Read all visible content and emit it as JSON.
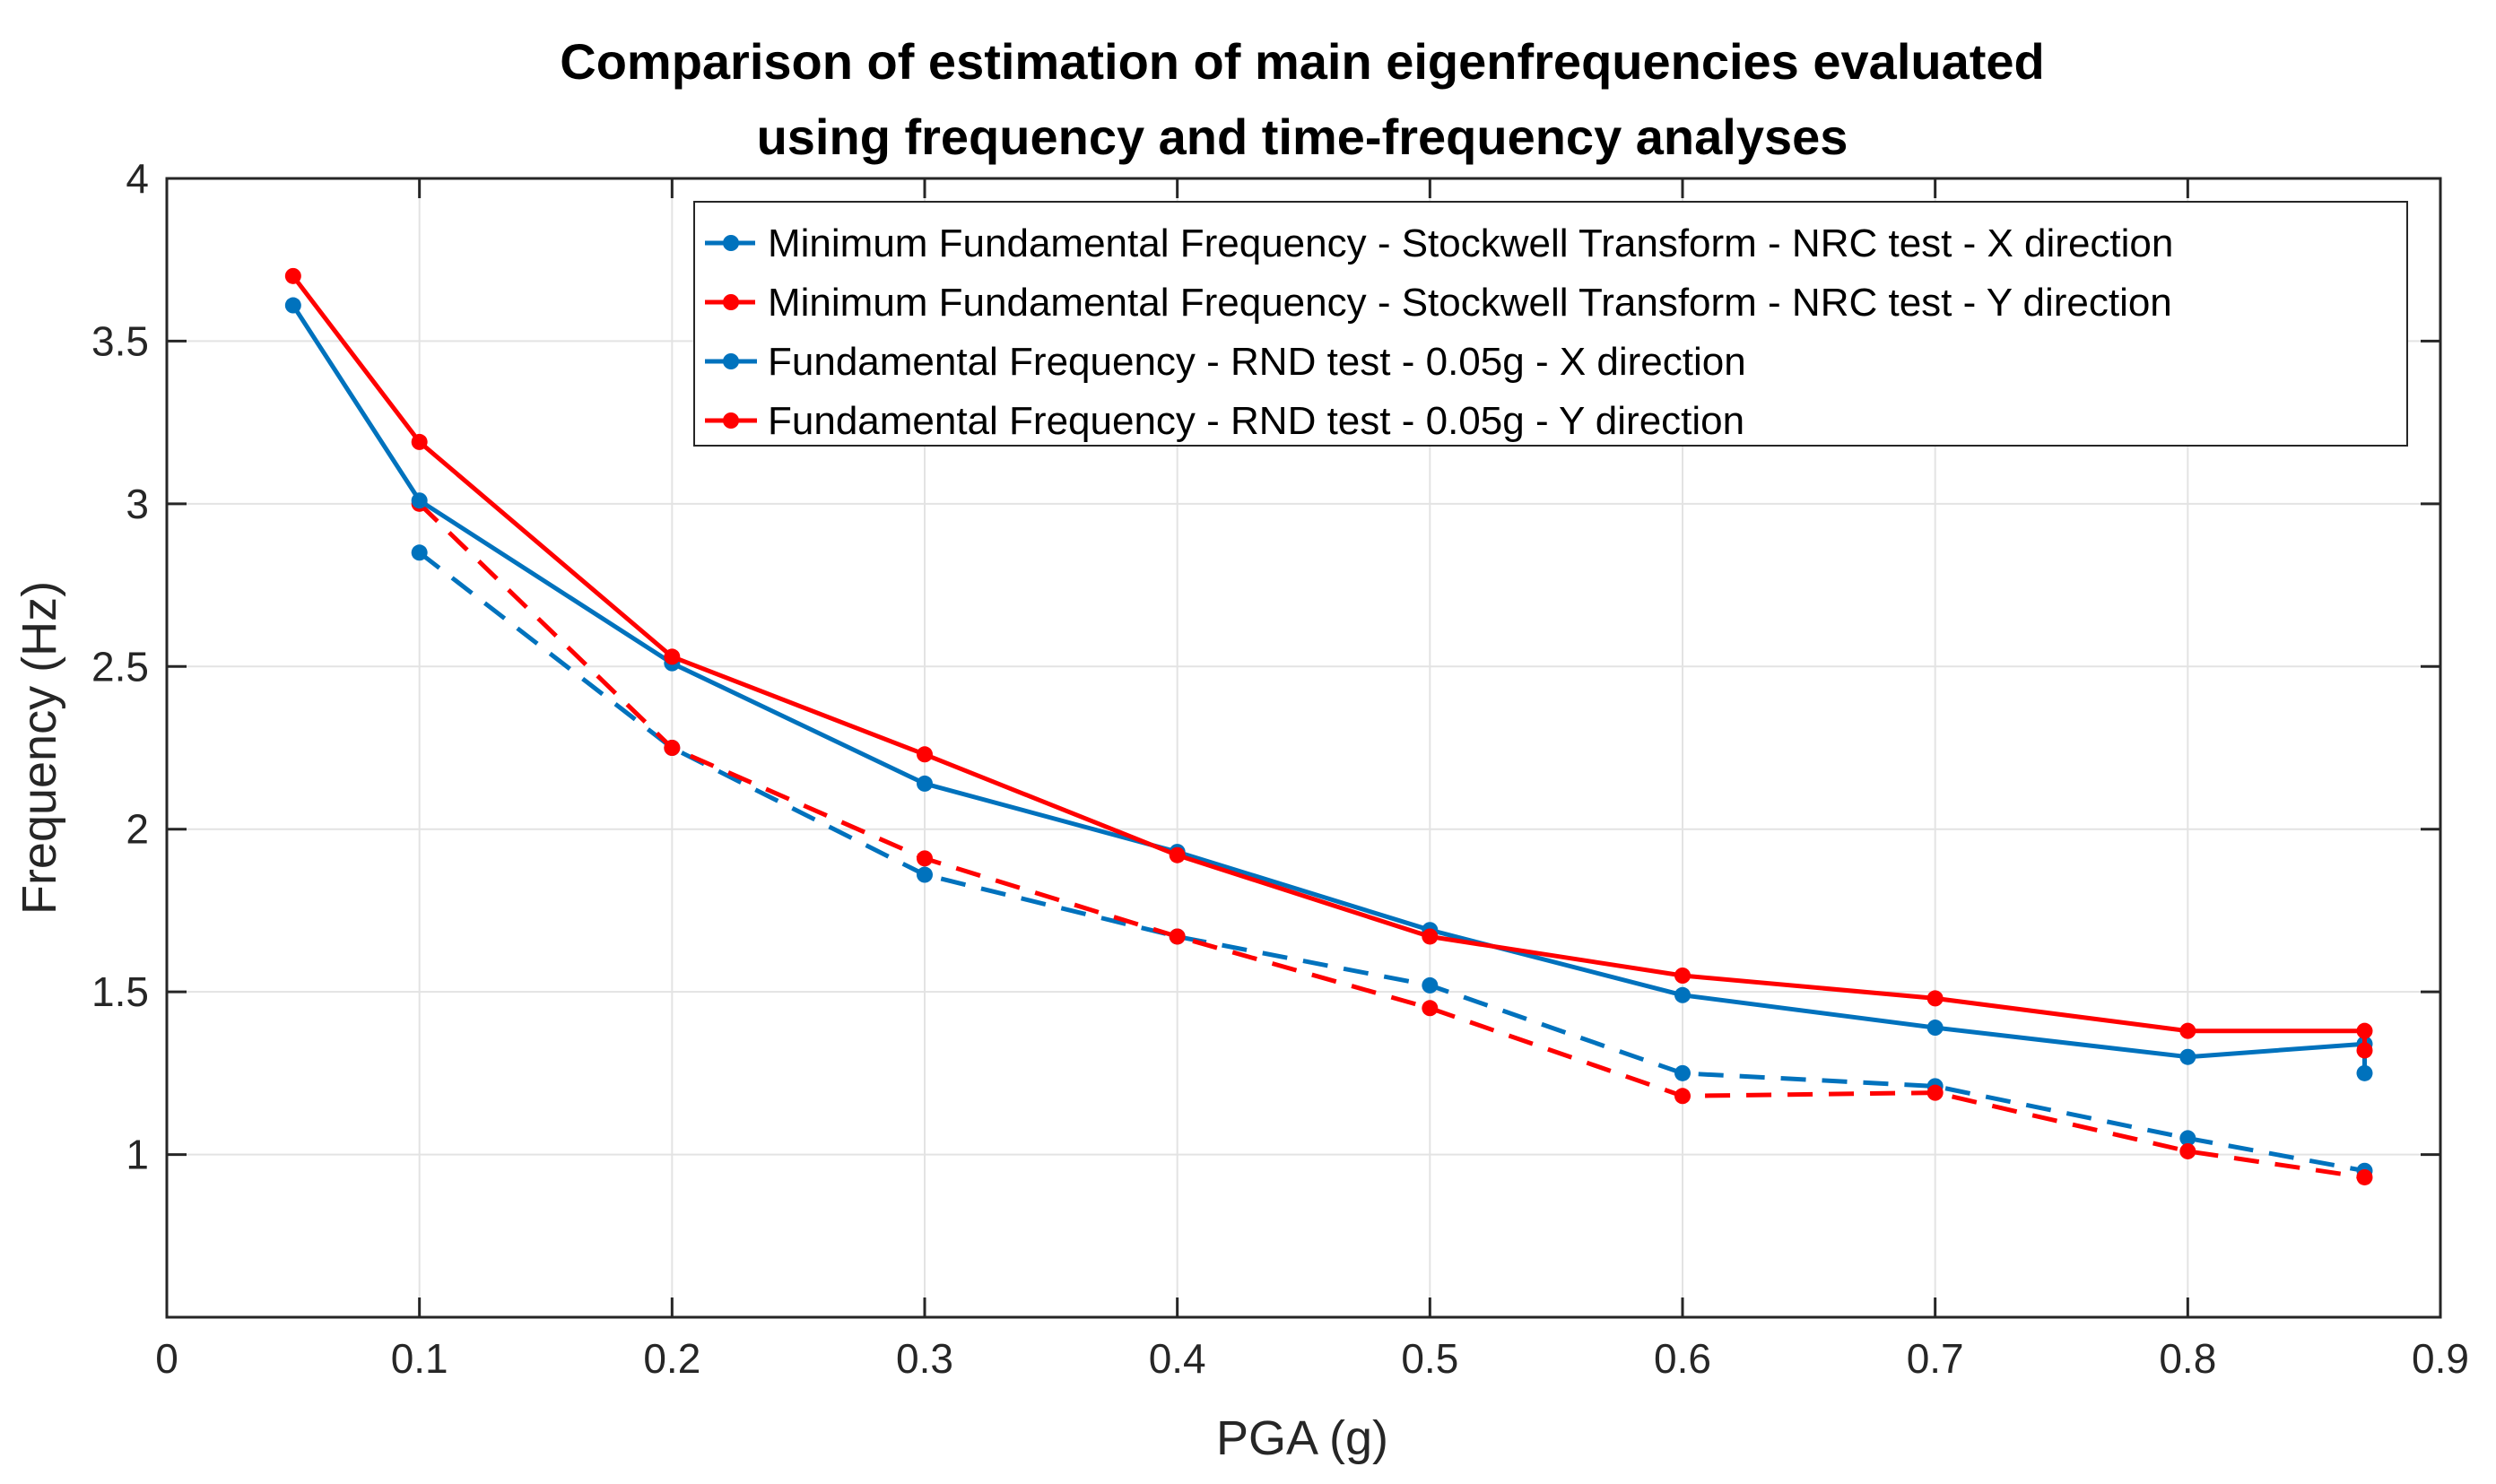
{
  "colors": {
    "blue": "#0072BD",
    "red": "#FF0000",
    "grid": "#E3E3E3",
    "axis": "#262626"
  },
  "chart_data": {
    "type": "line",
    "title": [
      "Comparison of estimation of main eigenfrequencies evaluated",
      "using frequency and time-frequency analyses"
    ],
    "xlabel": "PGA (g)",
    "ylabel": "Frequency (Hz)",
    "xlim": [
      0,
      0.9
    ],
    "ylim": [
      0.5,
      4
    ],
    "xticks": [
      0,
      0.1,
      0.2,
      0.3,
      0.4,
      0.5,
      0.6,
      0.7,
      0.8,
      0.9
    ],
    "xtick_labels": [
      "0",
      "0.1",
      "0.2",
      "0.3",
      "0.4",
      "0.5",
      "0.6",
      "0.7",
      "0.8",
      "0.9"
    ],
    "yticks": [
      1,
      1.5,
      2,
      2.5,
      3,
      3.5,
      4
    ],
    "ytick_labels": [
      "1",
      "1.5",
      "2",
      "2.5",
      "3",
      "3.5",
      "4"
    ],
    "grid": true,
    "legend_position": "top-right",
    "series": [
      {
        "name": "Minimum Fundamental Frequency - Stockwell Transform - NRC test - X direction",
        "color": "blue",
        "dash": true,
        "x": [
          0.1,
          0.2,
          0.3,
          0.4,
          0.5,
          0.6,
          0.7,
          0.8,
          0.87
        ],
        "y": [
          2.85,
          2.25,
          1.86,
          1.67,
          1.52,
          1.25,
          1.21,
          1.05,
          0.95
        ]
      },
      {
        "name": "Minimum Fundamental Frequency - Stockwell Transform - NRC test - Y direction",
        "color": "red",
        "dash": true,
        "x": [
          0.1,
          0.2,
          0.3,
          0.4,
          0.5,
          0.6,
          0.7,
          0.8,
          0.87
        ],
        "y": [
          3.0,
          2.25,
          1.91,
          1.67,
          1.45,
          1.18,
          1.19,
          1.01,
          0.93
        ]
      },
      {
        "name": "Fundamental Frequency - RND test - 0.05g - X direction",
        "color": "blue",
        "dash": false,
        "x": [
          0.05,
          0.1,
          0.2,
          0.3,
          0.4,
          0.5,
          0.6,
          0.7,
          0.8,
          0.87,
          0.87
        ],
        "y": [
          3.61,
          3.01,
          2.51,
          2.14,
          1.93,
          1.69,
          1.49,
          1.39,
          1.3,
          1.34,
          1.25
        ]
      },
      {
        "name": "Fundamental Frequency - RND test - 0.05g - Y direction",
        "color": "red",
        "dash": false,
        "x": [
          0.05,
          0.1,
          0.2,
          0.3,
          0.4,
          0.5,
          0.6,
          0.7,
          0.8,
          0.87,
          0.87
        ],
        "y": [
          3.7,
          3.19,
          2.53,
          2.23,
          1.92,
          1.67,
          1.55,
          1.48,
          1.38,
          1.38,
          1.32
        ]
      }
    ]
  }
}
